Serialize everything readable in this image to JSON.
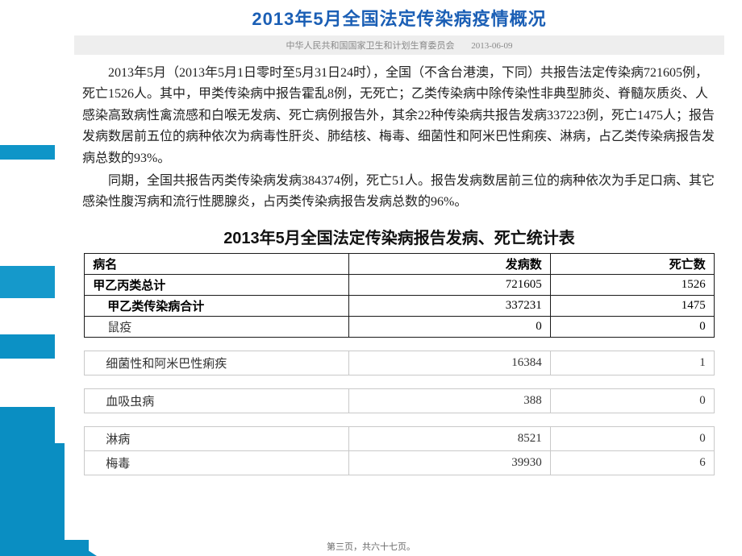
{
  "header": {
    "title": "2013年5月全国法定传染病疫情概况",
    "source": "中华人民共和国国家卫生和计划生育委员会",
    "date": "2013-06-09"
  },
  "paragraphs": {
    "p1": "2013年5月（2013年5月1日零时至5月31日24时），全国（不含台港澳，下同）共报告法定传染病721605例，死亡1526人。其中，甲类传染病中报告霍乱8例，无死亡；乙类传染病中除传染性非典型肺炎、脊髓灰质炎、人感染高致病性禽流感和白喉无发病、死亡病例报告外，其余22种传染病共报告发病337223例，死亡1475人；报告发病数居前五位的病种依次为病毒性肝炎、肺结核、梅毒、细菌性和阿米巴性痢疾、淋病，占乙类传染病报告发病总数的93%。",
    "p2": "同期，全国共报告丙类传染病发病384374例，死亡51人。报告发病数居前三位的病种依次为手足口病、其它感染性腹泻病和流行性腮腺炎，占丙类传染病报告发病总数的96%。"
  },
  "table": {
    "title": "2013年5月全国法定传染病报告发病、死亡统计表",
    "columns": [
      "病名",
      "发病数",
      "死亡数"
    ],
    "rows": [
      {
        "label": "甲乙丙类总计",
        "cases": "721605",
        "deaths": "1526",
        "bold": true,
        "indent": 0
      },
      {
        "label": "甲乙类传染病合计",
        "cases": "337231",
        "deaths": "1475",
        "bold": true,
        "indent": 1
      },
      {
        "label": "鼠疫",
        "cases": "0",
        "deaths": "0",
        "bold": false,
        "indent": 1
      }
    ],
    "fragments": [
      [
        {
          "label": "细菌性和阿米巴性痢疾",
          "cases": "16384",
          "deaths": "1"
        }
      ],
      [
        {
          "label": "血吸虫病",
          "cases": "388",
          "deaths": "0"
        }
      ],
      [
        {
          "label": "淋病",
          "cases": "8521",
          "deaths": "0"
        },
        {
          "label": "梅毒",
          "cases": "39930",
          "deaths": "6"
        }
      ]
    ]
  },
  "colors": {
    "title_color": "#1b5fb5",
    "stripe_color": "#0a8ec2",
    "text_color": "#222222",
    "border_color": "#1a1a1a",
    "frag_border_color": "#c9c9c9",
    "subtitle_bg": "#eeeeee",
    "subtitle_text": "#888888"
  },
  "footer": "第三页，共六十七页。"
}
